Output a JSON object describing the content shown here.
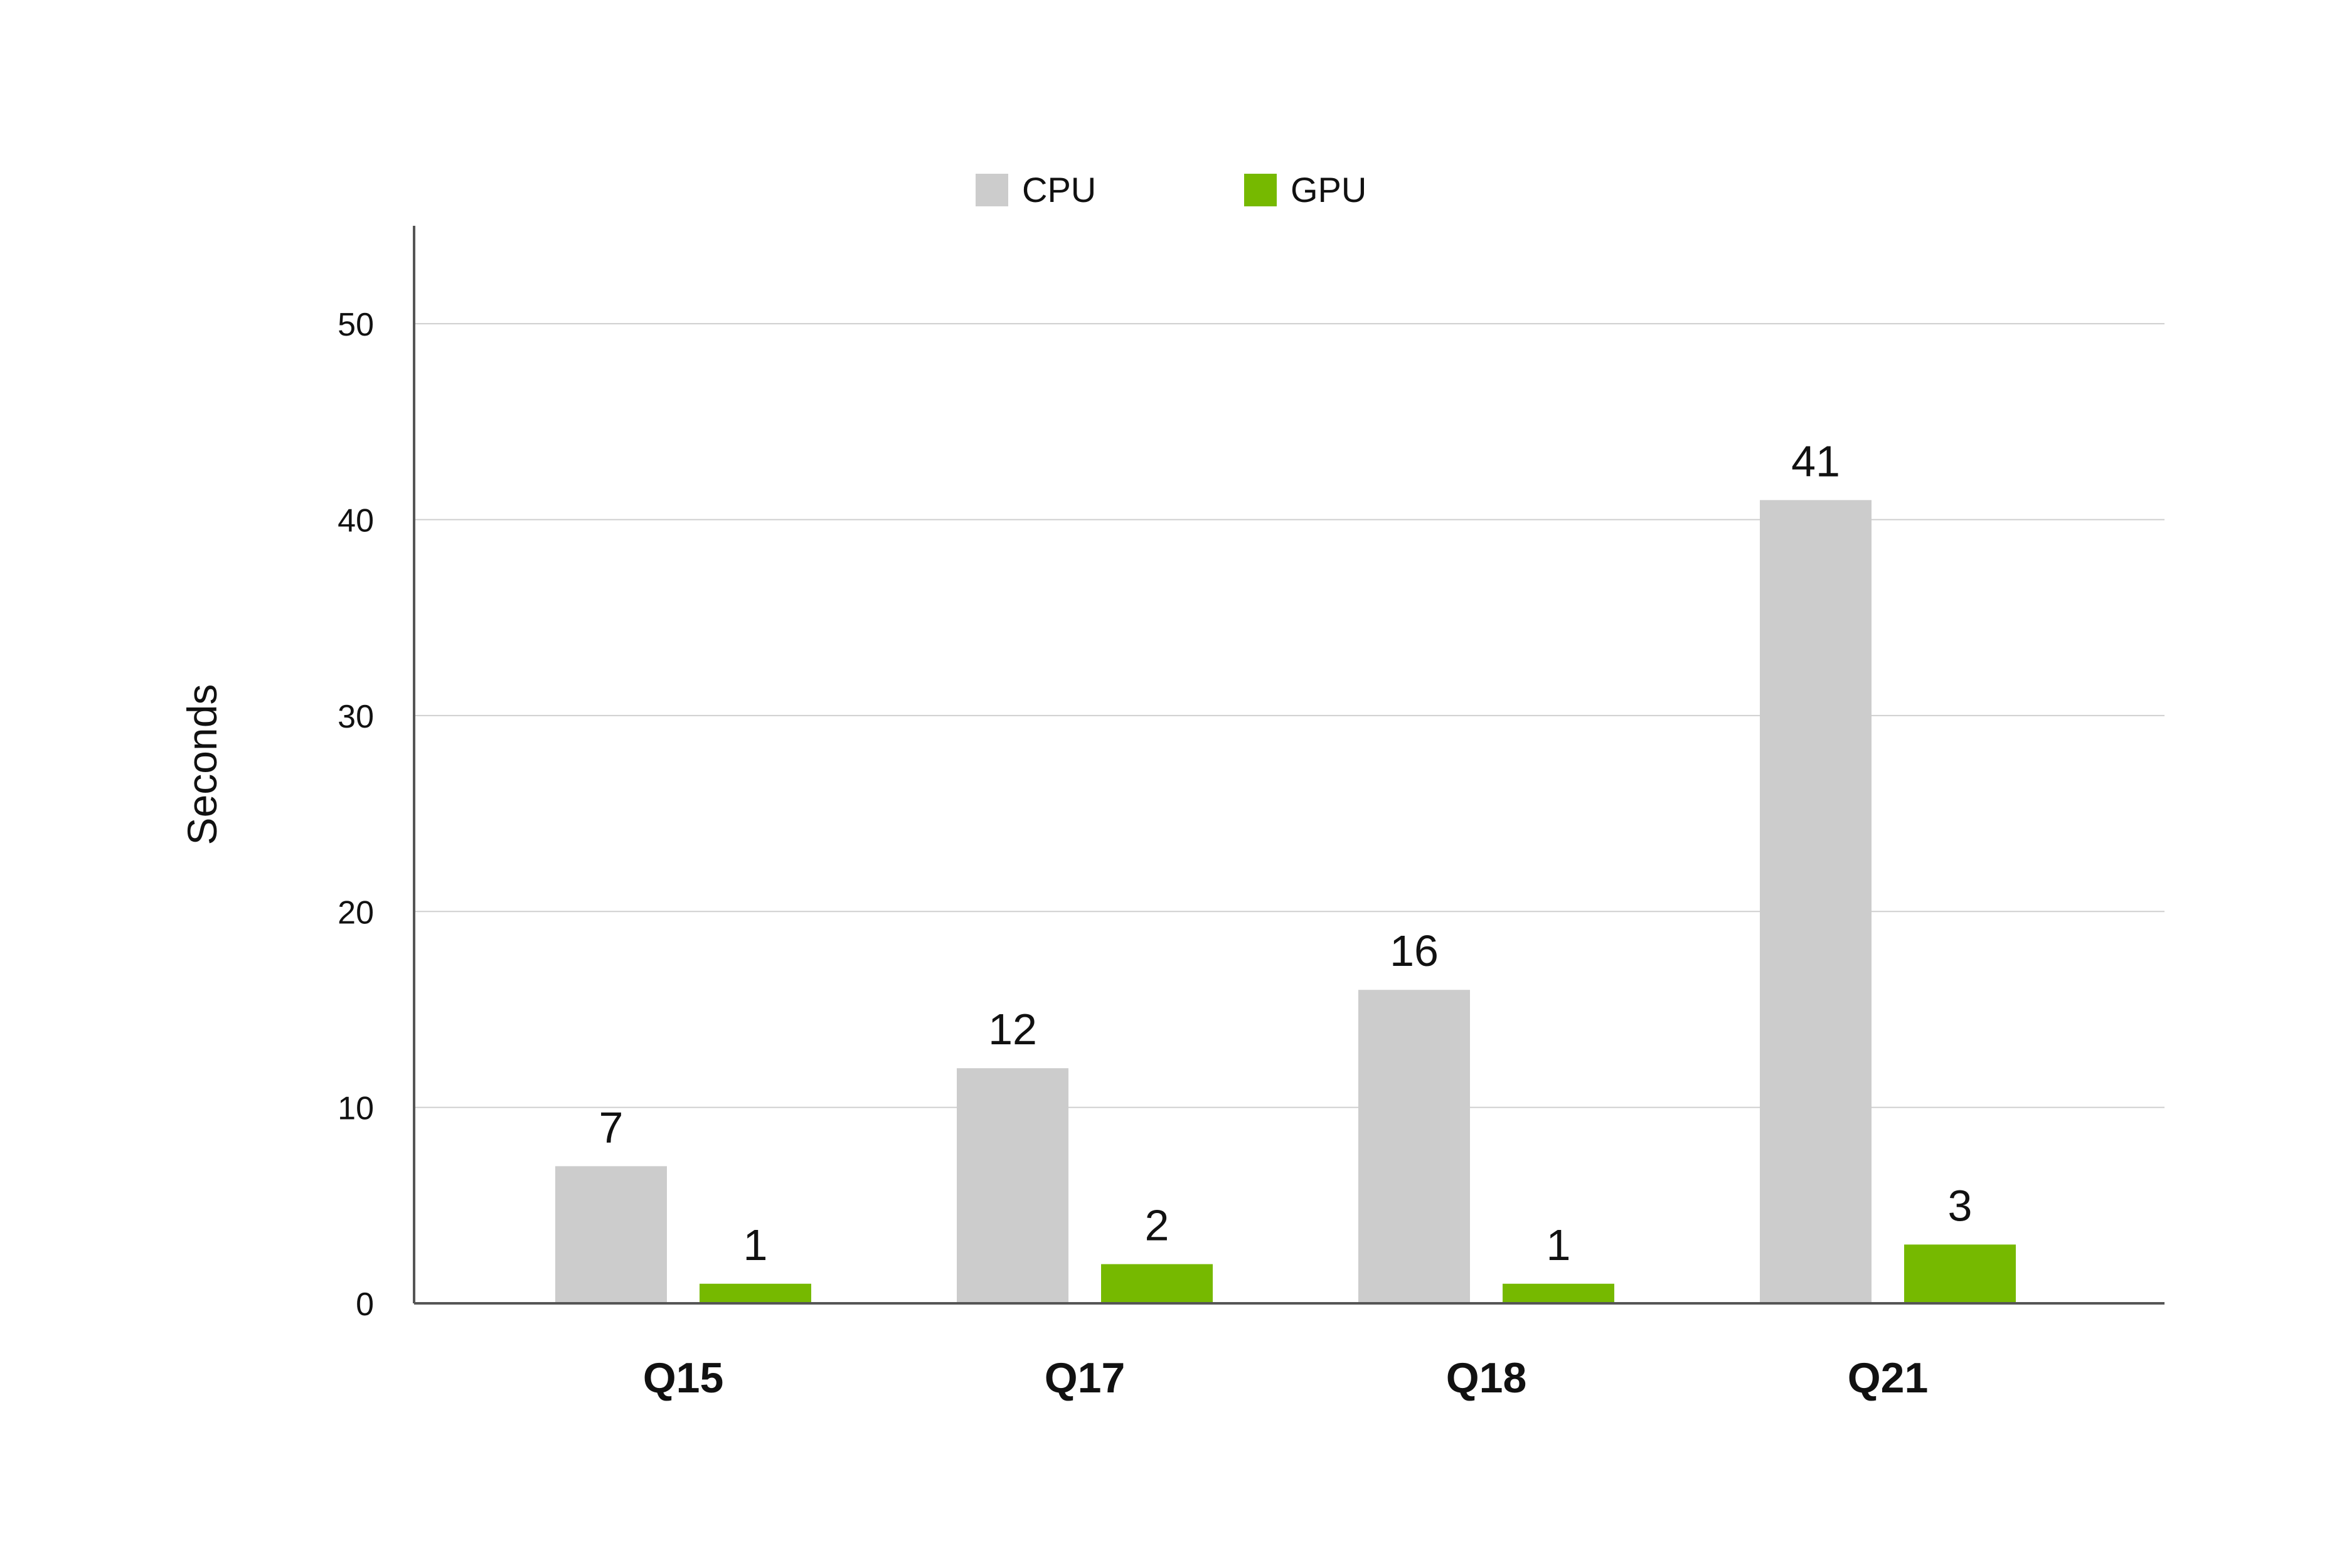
{
  "chart_data": {
    "type": "bar",
    "title": "",
    "xlabel": "",
    "ylabel": "Seconds",
    "categories": [
      "Q15",
      "Q17",
      "Q18",
      "Q21"
    ],
    "series": [
      {
        "name": "CPU",
        "color": "#cccccc",
        "values": [
          7,
          12,
          16,
          41
        ]
      },
      {
        "name": "GPU",
        "color": "#76b900",
        "values": [
          1,
          2,
          1,
          3
        ]
      }
    ],
    "ylim": [
      0,
      55
    ],
    "yticks": [
      0,
      10,
      20,
      30,
      40,
      50
    ],
    "grid": true,
    "legend_position": "top-center",
    "data_labels": true
  }
}
